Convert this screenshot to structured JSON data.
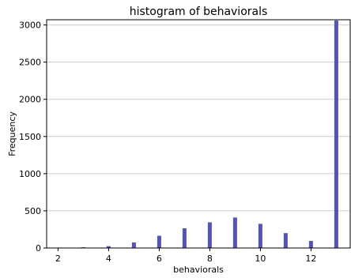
{
  "chart_data": {
    "type": "bar",
    "title": "histogram of behaviorals",
    "xlabel": "behaviorals",
    "ylabel": "Frequency",
    "x": [
      2,
      3,
      4,
      5,
      6,
      7,
      8,
      9,
      10,
      11,
      12,
      13
    ],
    "values": [
      3,
      10,
      25,
      75,
      165,
      265,
      345,
      410,
      325,
      200,
      95,
      3060
    ],
    "bar_color": "#5353b9",
    "xlim": [
      1.55,
      13.55
    ],
    "ylim": [
      0,
      3070
    ],
    "xticks": [
      2,
      4,
      6,
      8,
      10,
      12
    ],
    "yticks": [
      0,
      500,
      1000,
      1500,
      2000,
      2500,
      3000
    ],
    "grid": "horizontal"
  }
}
